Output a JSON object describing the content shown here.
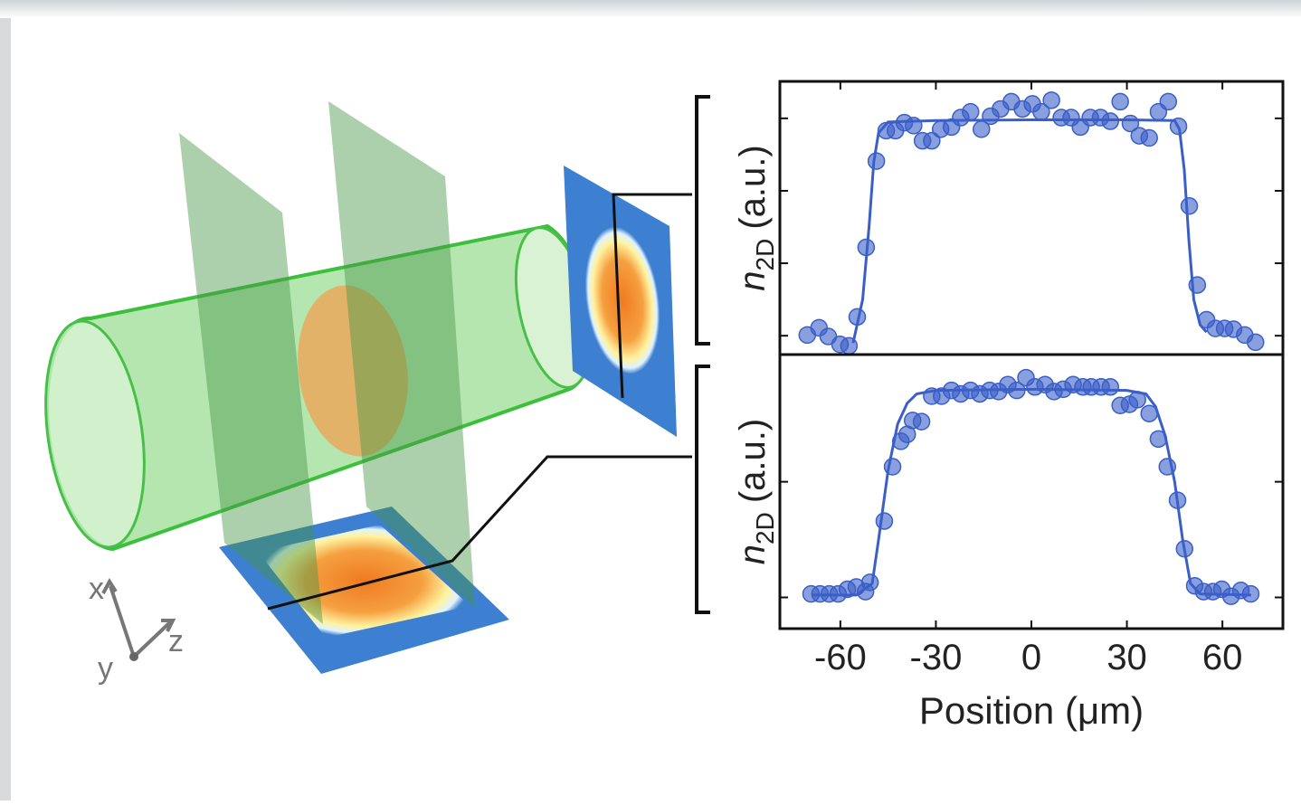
{
  "illustration": {
    "axes": [
      "x",
      "y",
      "z"
    ]
  },
  "chart_data": [
    {
      "type": "scatter",
      "color": "#3a5fc8",
      "ylabel": {
        "symbol": "n",
        "subscript": "2D",
        "unit": "(a.u.)"
      },
      "xlim": [
        -79,
        79
      ],
      "xticks": [
        -60,
        -30,
        0,
        30,
        60
      ],
      "ylim": [
        -0.26,
        3.51
      ],
      "yticks": [
        0,
        1,
        2,
        3
      ],
      "points": {
        "x": [
          -70.4,
          -66.7,
          -63.8,
          -60.1,
          -57.3,
          -54.7,
          -51.9,
          -48.7,
          -45.6,
          -42.7,
          -39.9,
          -37.0,
          -34.2,
          -31.3,
          -28.5,
          -25.1,
          -22.2,
          -19.1,
          -15.7,
          -12.8,
          -9.7,
          -6.3,
          -2.8,
          0.3,
          3.1,
          6.3,
          9.4,
          12.5,
          15.4,
          18.5,
          21.7,
          24.8,
          27.9,
          31.1,
          33.9,
          37.0,
          39.9,
          43.0,
          46.2,
          49.6,
          52.1,
          55.0,
          57.8,
          60.7,
          63.5,
          67.0,
          70.4
        ],
        "values": [
          0.01,
          0.11,
          -0.01,
          -0.12,
          -0.14,
          0.26,
          1.22,
          2.41,
          2.83,
          2.83,
          2.94,
          2.9,
          2.69,
          2.69,
          2.85,
          2.88,
          3.01,
          3.09,
          2.85,
          3.03,
          3.13,
          3.23,
          3.13,
          3.2,
          3.09,
          3.25,
          3.01,
          3.01,
          2.88,
          3.01,
          3.01,
          2.96,
          3.23,
          2.93,
          2.76,
          2.73,
          3.09,
          3.23,
          2.89,
          1.79,
          0.7,
          0.22,
          0.1,
          0.1,
          0.09,
          0.01,
          -0.09
        ]
      },
      "fit": {
        "x": [
          -56,
          -53,
          -51,
          -49.5,
          -48,
          -45,
          -30,
          0,
          30,
          45,
          46.5,
          48,
          49.5,
          51,
          53,
          55
        ],
        "values": [
          -0.1,
          0.5,
          1.5,
          2.4,
          2.8,
          2.95,
          2.97,
          2.98,
          2.98,
          2.97,
          2.85,
          2.3,
          1.3,
          0.5,
          0.15,
          0.05
        ]
      }
    },
    {
      "type": "scatter",
      "color": "#3a5fc8",
      "ylabel": {
        "symbol": "n",
        "subscript": "2D",
        "unit": "(a.u.)"
      },
      "xlabel": "Position (μm)",
      "xlim": [
        -79,
        79
      ],
      "xticks": [
        -60,
        -30,
        0,
        30,
        60
      ],
      "ylim": [
        -0.27,
        2.1
      ],
      "yticks": [
        0,
        1
      ],
      "points": {
        "x": [
          -69.2,
          -66.4,
          -63.5,
          -60.7,
          -57.8,
          -55.0,
          -52.1,
          -50.7,
          -46.2,
          -43.6,
          -41.0,
          -39.0,
          -37.3,
          -34.5,
          -31.3,
          -28.2,
          -25.1,
          -22.2,
          -19.1,
          -16.2,
          -13.1,
          -10.3,
          -7.4,
          -4.6,
          -1.7,
          1.1,
          4.3,
          7.1,
          10.0,
          13.1,
          16.2,
          18.8,
          21.9,
          24.8,
          27.9,
          30.8,
          33.3,
          37.0,
          39.9,
          42.7,
          45.9,
          48.1,
          51.3,
          54.1,
          57.0,
          59.8,
          62.7,
          65.8,
          68.9
        ],
        "values": [
          0.03,
          0.03,
          0.03,
          0.03,
          0.07,
          0.09,
          0.05,
          0.13,
          0.66,
          1.13,
          1.35,
          1.41,
          1.53,
          1.52,
          1.74,
          1.74,
          1.79,
          1.76,
          1.79,
          1.76,
          1.79,
          1.78,
          1.84,
          1.79,
          1.9,
          1.82,
          1.84,
          1.78,
          1.8,
          1.84,
          1.82,
          1.82,
          1.82,
          1.82,
          1.66,
          1.67,
          1.71,
          1.59,
          1.37,
          1.13,
          0.84,
          0.42,
          0.1,
          0.05,
          0.05,
          0.07,
          0.01,
          0.06,
          0.03
        ]
      },
      "fit": {
        "x": [
          -69,
          -55,
          -50,
          -48,
          -45,
          -42,
          -39,
          -36,
          -30,
          0,
          30,
          36,
          39,
          42,
          45,
          47.5,
          50,
          53,
          69
        ],
        "values": [
          0.02,
          0.02,
          0.12,
          0.5,
          1.1,
          1.5,
          1.68,
          1.76,
          1.79,
          1.8,
          1.79,
          1.76,
          1.65,
          1.4,
          1.0,
          0.5,
          0.12,
          0.03,
          0.02
        ]
      }
    }
  ]
}
